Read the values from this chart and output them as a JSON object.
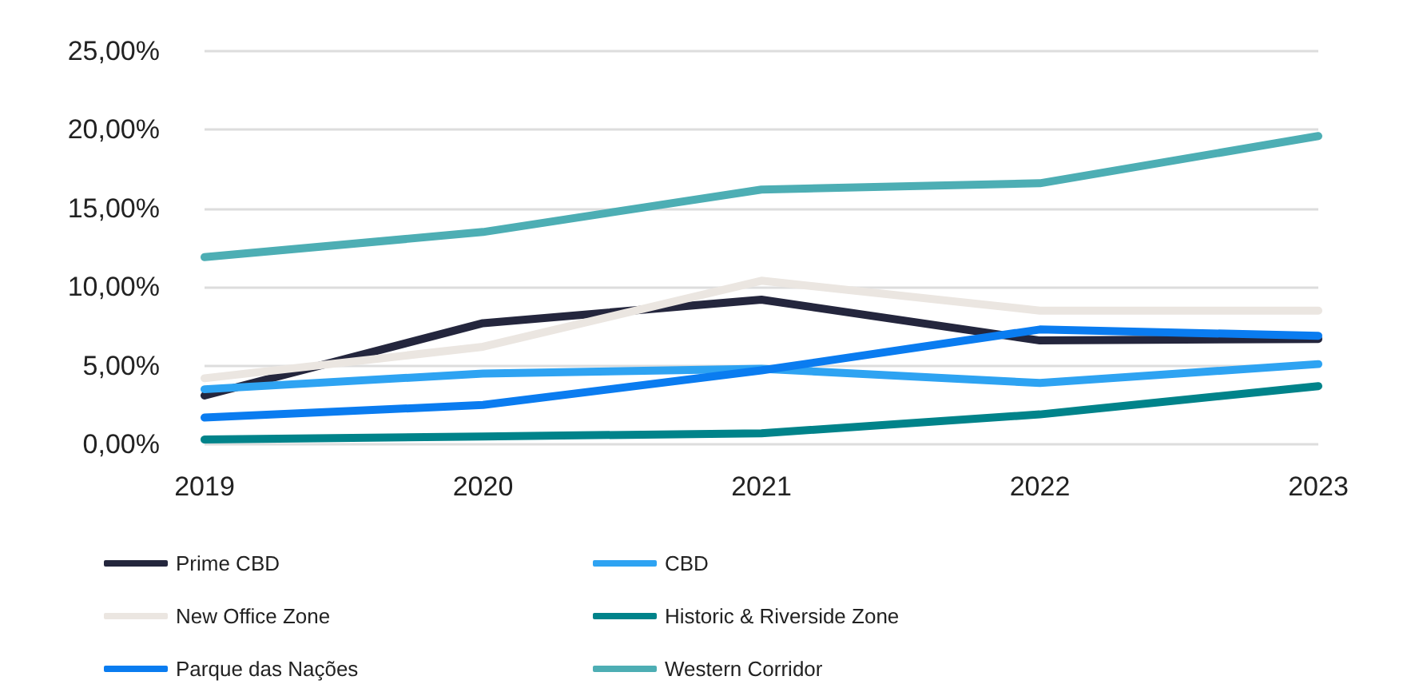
{
  "chart_data": {
    "type": "line",
    "categories": [
      "2019",
      "2020",
      "2021",
      "2022",
      "2023"
    ],
    "series": [
      {
        "name": "Prime CBD",
        "color": "#24263d",
        "values": [
          3.1,
          7.7,
          9.2,
          6.6,
          6.7
        ]
      },
      {
        "name": "CBD",
        "color": "#2ea3f2",
        "values": [
          3.5,
          4.5,
          4.8,
          3.9,
          5.1
        ]
      },
      {
        "name": "New Office Zone",
        "color": "#ebe6e1",
        "values": [
          4.2,
          6.2,
          10.4,
          8.5,
          8.5
        ]
      },
      {
        "name": "Historic & Riverside Zone",
        "color": "#00838a",
        "values": [
          0.3,
          0.5,
          0.7,
          1.9,
          3.7
        ]
      },
      {
        "name": "Parque das Nações",
        "color": "#0a7cf0",
        "values": [
          1.7,
          2.5,
          4.7,
          7.3,
          6.9
        ]
      },
      {
        "name": "Western Corridor",
        "color": "#4daeb4",
        "values": [
          11.9,
          13.5,
          16.2,
          16.6,
          19.6
        ]
      }
    ],
    "ylim": [
      0,
      25
    ],
    "yticks": [
      {
        "value": 0,
        "label": "0,00%"
      },
      {
        "value": 5,
        "label": "5,00%"
      },
      {
        "value": 10,
        "label": "10,00%"
      },
      {
        "value": 15,
        "label": "15,00%"
      },
      {
        "value": 20,
        "label": "20,00%"
      },
      {
        "value": 25,
        "label": "25,00%"
      }
    ],
    "grid": "y",
    "legend": "bottom",
    "marker": "none",
    "line_style": "solid"
  }
}
